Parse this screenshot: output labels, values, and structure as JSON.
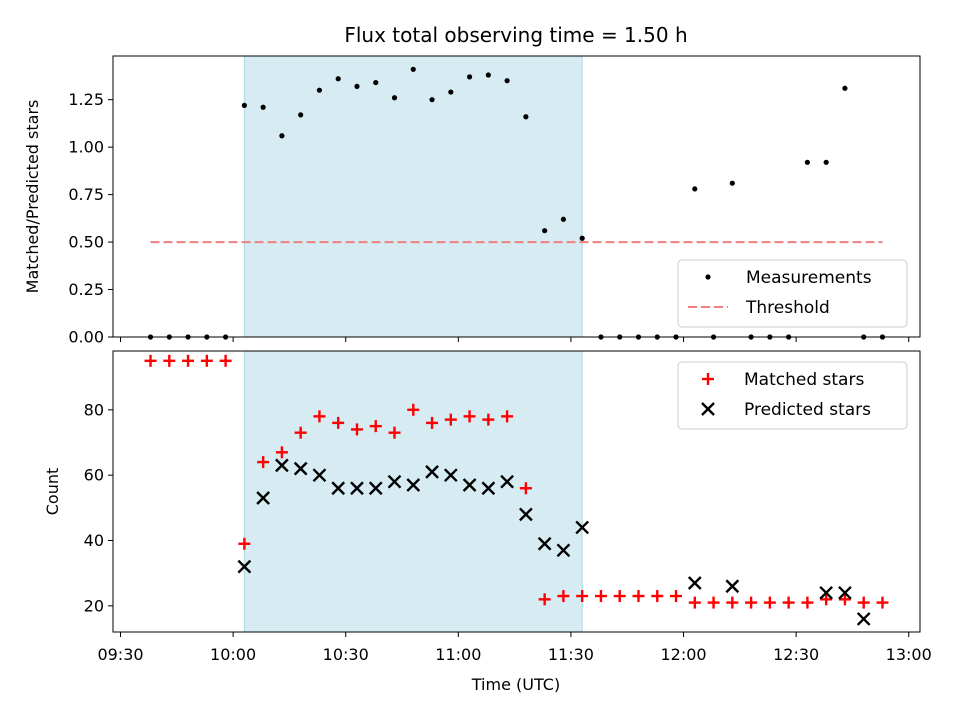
{
  "chart_data": {
    "type": "scatter",
    "title": "Flux total observing time = 1.50 h",
    "xlabel": "Time (UTC)",
    "x_tick_labels": [
      "09:30",
      "10:00",
      "10:30",
      "11:00",
      "11:30",
      "12:00",
      "12:30",
      "13:00"
    ],
    "x_tick_minutes": [
      570,
      600,
      630,
      660,
      690,
      720,
      750,
      780
    ],
    "xlim_minutes": [
      568,
      783
    ],
    "shaded_span_minutes": [
      603,
      693
    ],
    "panels": [
      {
        "ylabel": "Matched/Predicted stars",
        "ylim": [
          0,
          1.48
        ],
        "y_tick_labels": [
          "0.00",
          "0.25",
          "0.50",
          "0.75",
          "1.00",
          "1.25"
        ],
        "y_ticks": [
          0,
          0.25,
          0.5,
          0.75,
          1.0,
          1.25
        ],
        "legend": {
          "position": "lower-right",
          "entries": [
            "Measurements",
            "Threshold"
          ]
        },
        "series": [
          {
            "name": "Measurements",
            "marker": "dot",
            "color": "#000000",
            "x": [
              578,
              583,
              588,
              593,
              598,
              603,
              608,
              613,
              618,
              623,
              628,
              633,
              638,
              643,
              648,
              653,
              658,
              663,
              668,
              673,
              678,
              683,
              688,
              693,
              698,
              703,
              708,
              713,
              718,
              723,
              728,
              733,
              738,
              743,
              748,
              753,
              758,
              763,
              768,
              773
            ],
            "y": [
              0,
              0,
              0,
              0,
              0,
              1.22,
              1.21,
              1.06,
              1.17,
              1.3,
              1.36,
              1.32,
              1.34,
              1.26,
              1.41,
              1.25,
              1.29,
              1.37,
              1.38,
              1.35,
              1.16,
              0.56,
              0.62,
              0.52,
              0,
              0,
              0,
              0,
              0,
              0.78,
              0,
              0.81,
              0,
              0,
              0,
              0.92,
              0.92,
              1.31,
              0,
              0
            ]
          }
        ],
        "threshold": {
          "name": "Threshold",
          "value": 0.5,
          "x_range": [
            578,
            773
          ],
          "color": "#f08080"
        }
      },
      {
        "ylabel": "Count",
        "ylim": [
          12,
          98
        ],
        "y_tick_labels": [
          "20",
          "40",
          "60",
          "80"
        ],
        "y_ticks": [
          20,
          40,
          60,
          80
        ],
        "legend": {
          "position": "upper-right",
          "entries": [
            "Matched stars",
            "Predicted stars"
          ]
        },
        "series": [
          {
            "name": "Matched stars",
            "marker": "plus",
            "color": "#ff0000",
            "x": [
              578,
              583,
              588,
              593,
              598,
              603,
              608,
              613,
              618,
              623,
              628,
              633,
              638,
              643,
              648,
              653,
              658,
              663,
              668,
              673,
              678,
              683,
              688,
              693,
              698,
              703,
              708,
              713,
              718,
              723,
              728,
              733,
              738,
              743,
              748,
              753,
              758,
              763,
              768,
              773
            ],
            "y": [
              95,
              95,
              95,
              95,
              95,
              39,
              64,
              67,
              73,
              78,
              76,
              74,
              75,
              73,
              80,
              76,
              77,
              78,
              77,
              78,
              56,
              22,
              23,
              23,
              23,
              23,
              23,
              23,
              23,
              21,
              21,
              21,
              21,
              21,
              21,
              21,
              22,
              22,
              21,
              21
            ]
          },
          {
            "name": "Predicted stars",
            "marker": "x",
            "color": "#000000",
            "x": [
              603,
              608,
              613,
              618,
              623,
              628,
              633,
              638,
              643,
              648,
              653,
              658,
              663,
              668,
              673,
              678,
              683,
              688,
              693,
              723,
              733,
              758,
              763,
              768
            ],
            "y": [
              32,
              53,
              63,
              62,
              60,
              56,
              56,
              56,
              58,
              57,
              61,
              60,
              57,
              56,
              58,
              48,
              39,
              37,
              44,
              27,
              26,
              24,
              24,
              16
            ]
          }
        ]
      }
    ]
  }
}
